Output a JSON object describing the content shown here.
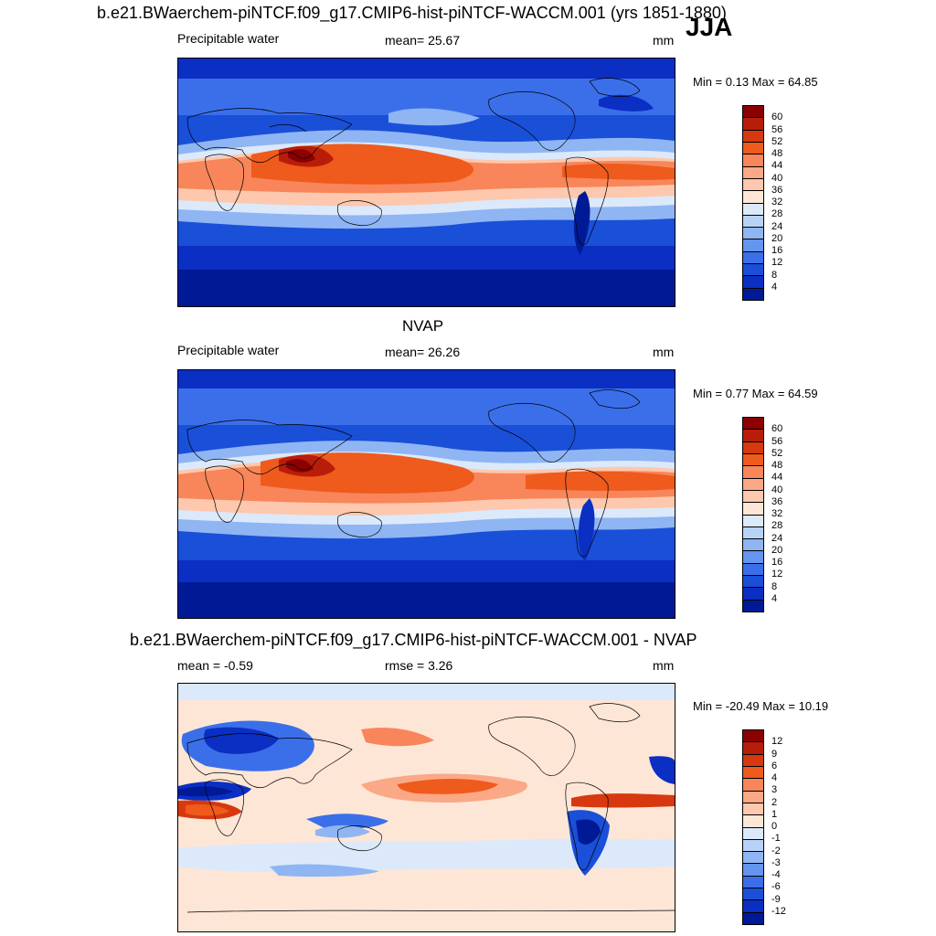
{
  "season": "JJA",
  "panels": [
    {
      "title": "b.e21.BWaerchem-piNTCF.f09_g17.CMIP6-hist-piNTCF-WACCM.001 (yrs 1851-1880)",
      "left_label": "Precipitable water",
      "center_label": "mean=  25.67",
      "units": "mm",
      "minmax": "Min =   0.13 Max =  64.85",
      "kind": "abs"
    },
    {
      "title": "NVAP",
      "left_label": "Precipitable water",
      "center_label": "mean=  26.26",
      "units": "mm",
      "minmax": "Min =   0.77 Max =  64.59",
      "kind": "abs"
    },
    {
      "title": "b.e21.BWaerchem-piNTCF.f09_g17.CMIP6-hist-piNTCF-WACCM.001 - NVAP",
      "left_label": "mean =  -0.59",
      "center_label": "rmse =   3.26",
      "units": "mm",
      "minmax": "Min = -20.49 Max =  10.19",
      "kind": "diff"
    }
  ],
  "colorbars": {
    "abs": {
      "labels": [
        "60",
        "56",
        "52",
        "48",
        "44",
        "40",
        "36",
        "32",
        "28",
        "24",
        "20",
        "16",
        "12",
        "8",
        "4"
      ],
      "colors": [
        "#8b0000",
        "#b81d0a",
        "#d8380f",
        "#ef5a1d",
        "#f8865a",
        "#fba887",
        "#fdc8ad",
        "#fde6d6",
        "#dbe9fb",
        "#b8d2f7",
        "#8fb5f3",
        "#6495ef",
        "#3b6fea",
        "#1a4fd8",
        "#0a2fc2",
        "#001a96"
      ]
    },
    "diff": {
      "labels": [
        "12",
        "9",
        "6",
        "4",
        "3",
        "2",
        "1",
        "0",
        "-1",
        "-2",
        "-3",
        "-4",
        "-6",
        "-9",
        "-12"
      ],
      "colors": [
        "#8b0000",
        "#b81d0a",
        "#d8380f",
        "#ef5a1d",
        "#f8865a",
        "#fba887",
        "#fdc8ad",
        "#fde6d6",
        "#dbe9fb",
        "#b8d2f7",
        "#8fb5f3",
        "#6495ef",
        "#3b6fea",
        "#1a4fd8",
        "#0a2fc2",
        "#001a96"
      ]
    }
  }
}
